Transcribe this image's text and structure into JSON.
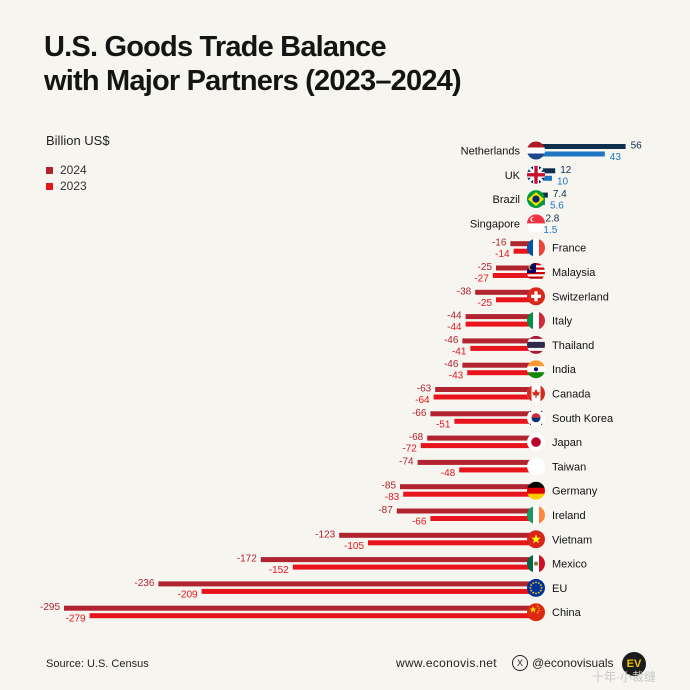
{
  "header": {
    "title_line1": "U.S. Goods Trade Balance",
    "title_line2": "with Major Partners (2023–2024)",
    "unit": "Billion US$"
  },
  "legend": [
    {
      "label": "2024",
      "color": "#b0232f"
    },
    {
      "label": "2023",
      "color": "#e8141b"
    }
  ],
  "footer": {
    "source": "Source: U.S. Census",
    "website": "www.econovis.net",
    "social": "@econovisuals",
    "logo_text": "EV",
    "watermark": "十年·小裁缝"
  },
  "colors": {
    "neg_2024": "#b0232f",
    "neg_2023": "#e8141b",
    "pos_2024": "#0d2e4d",
    "pos_2023": "#1f77c4"
  },
  "chart_data": {
    "type": "bar",
    "orientation": "horizontal",
    "categories": [
      "Netherlands",
      "UK",
      "Brazil",
      "Singapore",
      "France",
      "Malaysia",
      "Switzerland",
      "Italy",
      "Thailand",
      "India",
      "Canada",
      "South Korea",
      "Japan",
      "Taiwan",
      "Germany",
      "Ireland",
      "Vietnam",
      "Mexico",
      "EU",
      "China"
    ],
    "series": [
      {
        "name": "2024",
        "values": [
          56,
          12,
          7.4,
          2.8,
          -16,
          -25,
          -38,
          -44,
          -46,
          -46,
          -63,
          -66,
          -68,
          -74,
          -85,
          -87,
          -123,
          -172,
          -236,
          -295
        ]
      },
      {
        "name": "2023",
        "values": [
          43,
          10,
          5.6,
          1.5,
          -14,
          -27,
          -25,
          -44,
          -41,
          -43,
          -64,
          -51,
          -72,
          -48,
          -83,
          -66,
          -105,
          -152,
          -209,
          -279
        ]
      }
    ],
    "value_labels": {
      "2024": [
        "56",
        "12",
        "7.4",
        "2.8",
        "-16",
        "-25",
        "-38",
        "-44",
        "-46",
        "-46",
        "-63",
        "-66",
        "-68",
        "-74",
        "-85",
        "-87",
        "-123",
        "-172",
        "-236",
        "-295"
      ],
      "2023": [
        "43",
        "10",
        "5.6",
        "1.5",
        "-14",
        "-27",
        "-25",
        "-44",
        "-41",
        "-43",
        "-64",
        "-51",
        "-72",
        "-48",
        "-83",
        "-66",
        "-105",
        "-152",
        "-209",
        "-279"
      ]
    },
    "flags": [
      "netherlands-flag-icon",
      "uk-flag-icon",
      "brazil-flag-icon",
      "singapore-flag-icon",
      "france-flag-icon",
      "malaysia-flag-icon",
      "switzerland-flag-icon",
      "italy-flag-icon",
      "thailand-flag-icon",
      "india-flag-icon",
      "canada-flag-icon",
      "south-korea-flag-icon",
      "japan-flag-icon",
      "taiwan-flag-icon",
      "germany-flag-icon",
      "ireland-flag-icon",
      "vietnam-flag-icon",
      "mexico-flag-icon",
      "eu-flag-icon",
      "china-flag-icon"
    ],
    "xlim": [
      -295,
      56
    ],
    "grid": false,
    "legend_position": "top-left"
  }
}
